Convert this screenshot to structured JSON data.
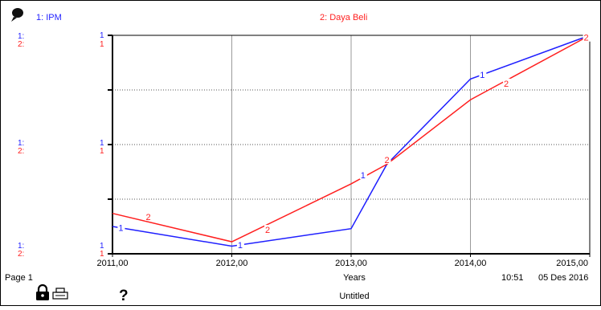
{
  "legend": {
    "series1_label": "1: IPM",
    "series2_label": "2: Daya Beli",
    "series1_color": "#1f1fff",
    "series2_color": "#ff1f1f"
  },
  "left_axis_labels": {
    "s1": [
      "1:",
      "1:",
      "1:"
    ],
    "s2": [
      "2:",
      "2:",
      "2:"
    ]
  },
  "scale_marks": {
    "s1": [
      "1",
      "1",
      "1"
    ],
    "s2": [
      "1",
      "1",
      "1"
    ]
  },
  "chart_data": {
    "type": "line",
    "title": "",
    "xlabel": "Years",
    "ylabel": "",
    "x_tick_labels": [
      "2011,00",
      "2012,00",
      "2013,00",
      "2014,00",
      "2015,00"
    ],
    "xlim": [
      2011,
      2015
    ],
    "ylim": [
      0,
      1
    ],
    "grid": true,
    "series": [
      {
        "name": "IPM",
        "marker": "1",
        "color": "#1f1fff",
        "x": [
          2011.0,
          2012.0,
          2013.0,
          2013.3,
          2014.0,
          2015.0
        ],
        "y": [
          0.125,
          0.035,
          0.115,
          0.41,
          0.8,
          1.0
        ]
      },
      {
        "name": "Daya Beli",
        "marker": "2",
        "color": "#ff1f1f",
        "x": [
          2011.0,
          2012.0,
          2013.0,
          2013.3,
          2014.0,
          2015.0
        ],
        "y": [
          0.185,
          0.055,
          0.32,
          0.41,
          0.705,
          1.0
        ]
      }
    ],
    "inline_markers": [
      {
        "series": 0,
        "x": 2011.07,
        "y": 0.12
      },
      {
        "series": 0,
        "x": 2012.07,
        "y": 0.04
      },
      {
        "series": 0,
        "x": 2013.1,
        "y": 0.36
      },
      {
        "series": 0,
        "x": 2014.1,
        "y": 0.82
      },
      {
        "series": 1,
        "x": 2011.3,
        "y": 0.17
      },
      {
        "series": 1,
        "x": 2012.3,
        "y": 0.11
      },
      {
        "series": 1,
        "x": 2013.3,
        "y": 0.43
      },
      {
        "series": 1,
        "x": 2014.3,
        "y": 0.78
      },
      {
        "series": 1,
        "x": 2014.97,
        "y": 0.99
      }
    ]
  },
  "footer": {
    "page_label": "Page 1",
    "time": "10:51",
    "date": "05 Des 2016",
    "doc_title": "Untitled"
  },
  "icons": {
    "top_left": "graph-pad-icon",
    "lock": "lock-icon",
    "print": "printer-icon",
    "help": "question-mark-icon"
  }
}
